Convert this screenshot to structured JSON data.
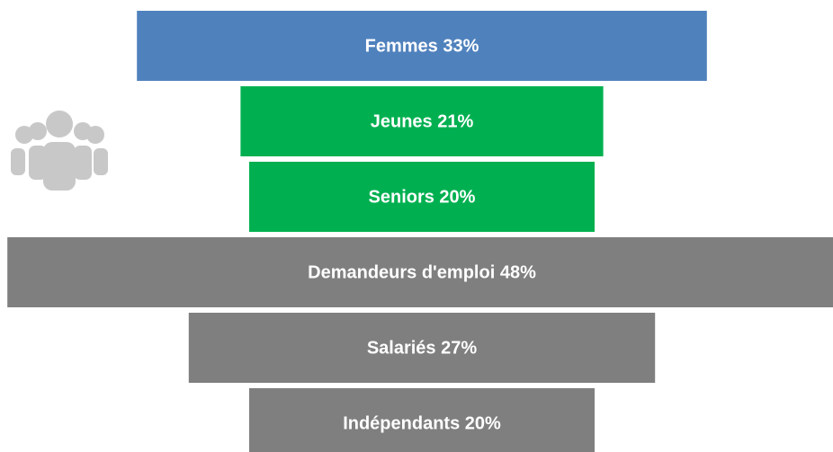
{
  "chart_data": {
    "type": "funnel",
    "values": [
      33,
      21,
      20,
      48,
      27,
      20
    ],
    "value_labels": [
      "Femmes 33%",
      "Jeunes 21%",
      "Seniors 20%",
      "Demandeurs d'emploi 48%",
      "Salariés 27%",
      "Indépendants 20%"
    ],
    "colors": [
      "#4f81bd",
      "#00b050",
      "#00b050",
      "#7f7f7f",
      "#7f7f7f",
      "#7f7f7f"
    ]
  }
}
